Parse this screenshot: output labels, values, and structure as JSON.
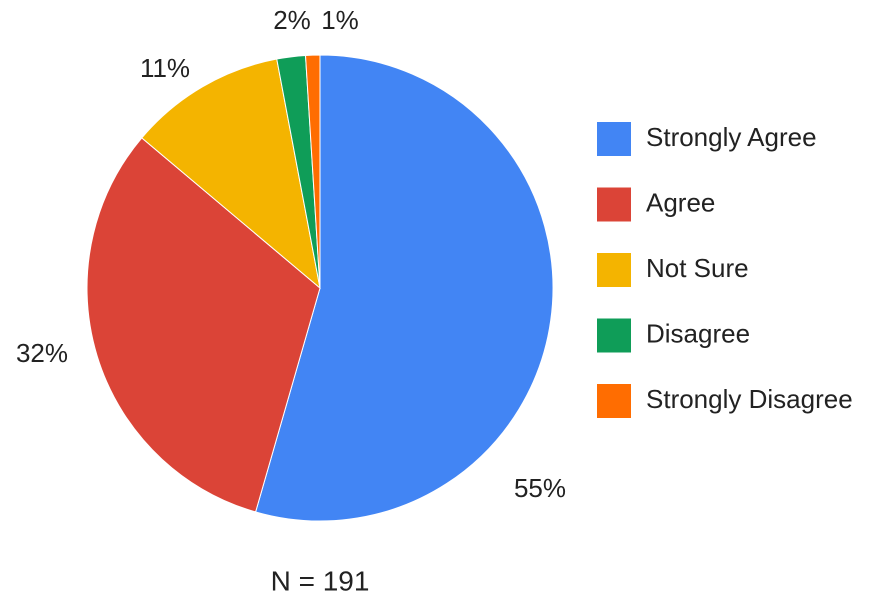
{
  "chart_data": {
    "type": "pie",
    "annotation": "N = 191",
    "categories": [
      "Strongly Agree",
      "Agree",
      "Not Sure",
      "Disagree",
      "Strongly Disagree"
    ],
    "values": [
      55,
      32,
      11,
      2,
      1
    ],
    "value_labels": [
      "55%",
      "32%",
      "11%",
      "2%",
      "1%"
    ],
    "colors": [
      "#4285f4",
      "#db4437",
      "#f4b400",
      "#0f9d58",
      "#ff6d01"
    ],
    "legend": "right"
  }
}
